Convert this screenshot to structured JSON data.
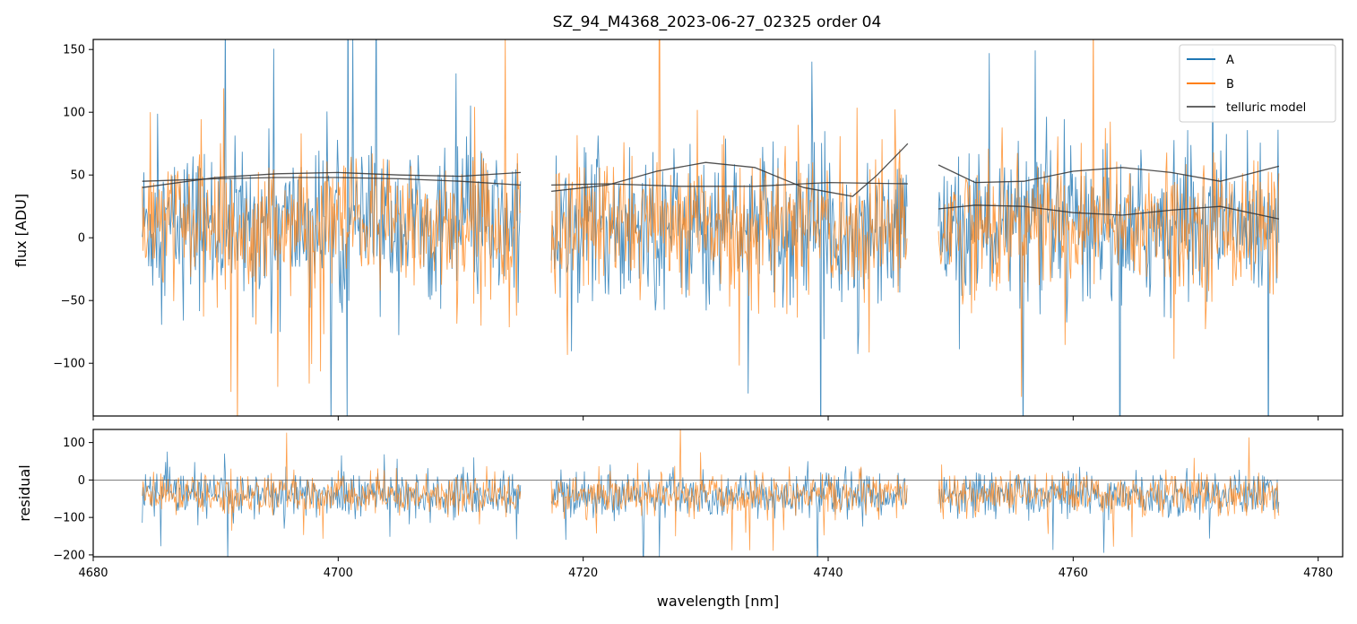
{
  "chart_data": [
    {
      "type": "line",
      "panel": "flux",
      "title": "SZ_94_M4368_2023-06-27_02325  order 04",
      "xlabel": "",
      "ylabel": "flux [ADU]",
      "xlim": [
        4680,
        4782
      ],
      "ylim": [
        -142,
        158
      ],
      "xticks": [
        4680,
        4700,
        4720,
        4740,
        4760,
        4780
      ],
      "yticks": [
        -100,
        -50,
        0,
        50,
        100,
        150
      ],
      "ytick_labels": [
        "−100",
        "−50",
        "0",
        "50",
        "100",
        "150"
      ],
      "grid": false,
      "legend_position": "top-right",
      "segments": [
        [
          4684.0,
          4714.9
        ],
        [
          4717.4,
          4746.5
        ],
        [
          4749.0,
          4776.8
        ]
      ],
      "series": [
        {
          "name": "A",
          "color": "#1f77b4",
          "description_range": [
            -142,
            158
          ],
          "mean": 10,
          "spread": 55
        },
        {
          "name": "B",
          "color": "#ff7f0e",
          "description_range": [
            -142,
            158
          ],
          "mean": 10,
          "spread": 50
        },
        {
          "name": "telluric model",
          "color": "#333333",
          "curves": [
            {
              "x": [
                4684.0,
                4690,
                4695,
                4700,
                4705,
                4710,
                4714.9
              ],
              "y": [
                40,
                48,
                51,
                52,
                50,
                49,
                52
              ]
            },
            {
              "x": [
                4684.0,
                4690,
                4695,
                4700,
                4705,
                4710,
                4714.9
              ],
              "y": [
                45,
                47,
                48,
                48,
                47,
                45,
                42
              ]
            },
            {
              "x": [
                4717.4,
                4722,
                4726,
                4730,
                4734,
                4738,
                4742,
                4744,
                4746.5
              ],
              "y": [
                37,
                42,
                53,
                60,
                56,
                40,
                33,
                50,
                75
              ]
            },
            {
              "x": [
                4717.4,
                4722,
                4728,
                4734,
                4740,
                4746.5
              ],
              "y": [
                42,
                43,
                41,
                41,
                44,
                43
              ]
            },
            {
              "x": [
                4749.0,
                4752,
                4756,
                4760,
                4764,
                4768,
                4772,
                4776.8
              ],
              "y": [
                58,
                44,
                45,
                53,
                56,
                52,
                45,
                57
              ]
            },
            {
              "x": [
                4749.0,
                4752,
                4756,
                4760,
                4764,
                4768,
                4772,
                4776.8
              ],
              "y": [
                23,
                26,
                25,
                20,
                18,
                22,
                25,
                15
              ]
            }
          ]
        }
      ]
    },
    {
      "type": "line",
      "panel": "residual",
      "xlabel": "wavelength [nm]",
      "ylabel": "residual",
      "xlim": [
        4680,
        4782
      ],
      "ylim": [
        -205,
        135
      ],
      "xticks": [
        4680,
        4700,
        4720,
        4740,
        4760,
        4780
      ],
      "xtick_labels": [
        "4680",
        "4700",
        "4720",
        "4740",
        "4760",
        "4780"
      ],
      "yticks": [
        -200,
        -100,
        0,
        100
      ],
      "ytick_labels": [
        "−200",
        "−100",
        "0",
        "100"
      ],
      "zero_line": 0,
      "series": [
        {
          "name": "A",
          "color": "#1f77b4",
          "mean": -40,
          "spread": 55
        },
        {
          "name": "B",
          "color": "#ff7f0e",
          "mean": -40,
          "spread": 50
        }
      ]
    }
  ]
}
